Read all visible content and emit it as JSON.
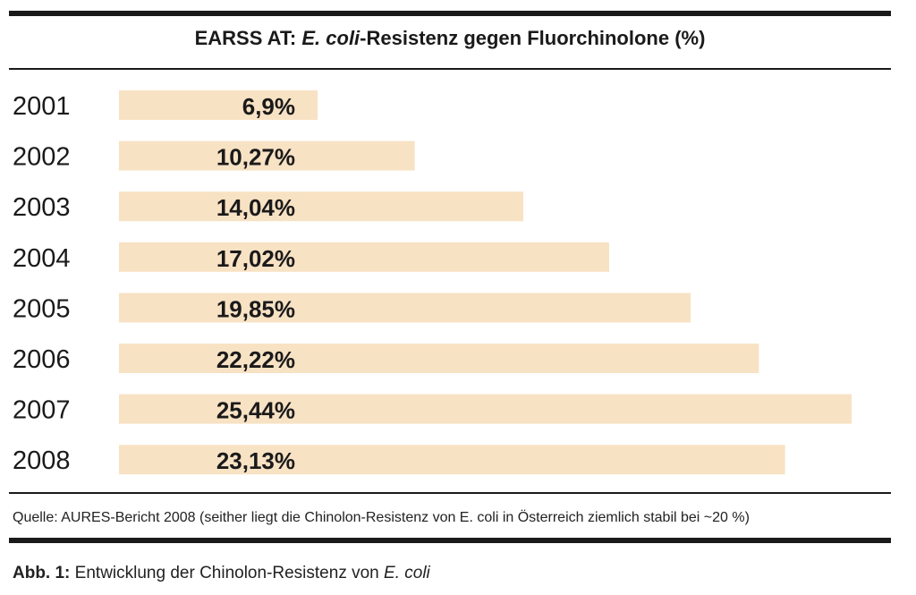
{
  "title": {
    "prefix": "EARSS AT: ",
    "italic": "E. coli",
    "suffix": "-Resistenz gegen Fluorchinolone (%)"
  },
  "source_note": "Quelle: AURES-Bericht 2008 (seither liegt die Chinolon-Resistenz von E. coli in Österreich ziemlich stabil bei ~20 %)",
  "caption": {
    "label": "Abb. 1:",
    "text": " Entwicklung der Chinolon-Resistenz von ",
    "italic": "E. coli"
  },
  "colors": {
    "bar": "#f8e2c4",
    "text": "#1a1a1a",
    "rule": "#1a1a1a"
  },
  "chart_data": {
    "type": "bar",
    "orientation": "horizontal",
    "title": "EARSS AT: E. coli-Resistenz gegen Fluorchinolone (%)",
    "categories": [
      "2001",
      "2002",
      "2003",
      "2004",
      "2005",
      "2006",
      "2007",
      "2008"
    ],
    "values": [
      6.9,
      10.27,
      14.04,
      17.02,
      19.85,
      22.22,
      25.44,
      23.13
    ],
    "value_labels": [
      "6,9%",
      "10,27%",
      "14,04%",
      "17,02%",
      "19,85%",
      "22,22%",
      "25,44%",
      "23,13%"
    ],
    "xlim": [
      0,
      25.44
    ],
    "grid": false,
    "legend": "none"
  }
}
